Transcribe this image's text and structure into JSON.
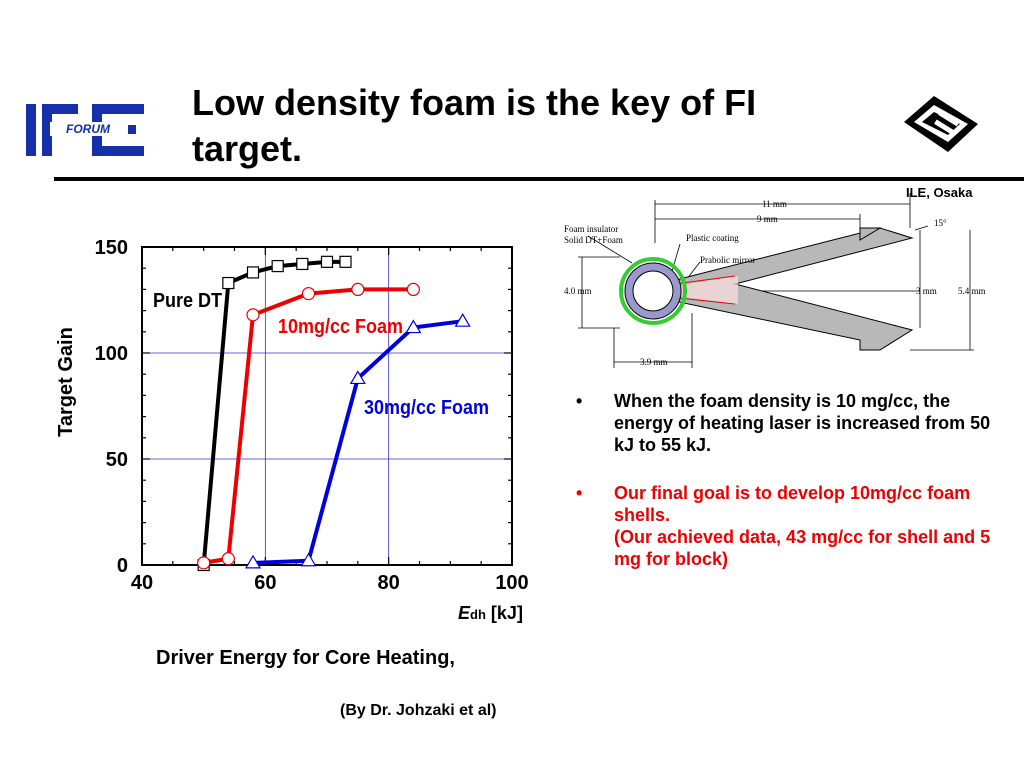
{
  "slide": {
    "title": "Low density foam is the key of FI target.",
    "logo_left": "IFE FORUM",
    "logo_left_forum": "FORUM",
    "logo_right": "ILE logo",
    "org_label": "ILE, Osaka",
    "x_symbol": "E",
    "x_subscript": "dh",
    "x_unit": "[kJ]",
    "x_description": "Driver Energy for Core Heating,",
    "credit": "(By Dr. Johzaki et al)",
    "bullets": [
      {
        "marker": "•",
        "text": "When the foam density is 10 mg/cc, the energy of heating laser is increased from 50 kJ to 55 kJ."
      },
      {
        "marker": "•",
        "line1": "Our final goal is to develop 10mg/cc foam shells.",
        "line2": "(Our achieved data, 43 mg/cc for shell and 5 mg for block)"
      }
    ]
  },
  "chart_data": {
    "type": "line",
    "ylabel": "Target Gain",
    "xlim": [
      40,
      100
    ],
    "ylim": [
      0,
      150
    ],
    "x_ticks": [
      40,
      60,
      80,
      100
    ],
    "y_ticks": [
      0,
      50,
      100,
      150
    ],
    "grid": true,
    "series": [
      {
        "name": "Pure DT",
        "color": "#000000",
        "marker": "square",
        "x": [
          50,
          54,
          58,
          62,
          66,
          70,
          73
        ],
        "y": [
          0,
          133,
          138,
          141,
          142,
          143,
          143
        ]
      },
      {
        "name": "10mg/cc Foam",
        "color": "#ee0000",
        "marker": "circle",
        "x": [
          50,
          54,
          58,
          67,
          75,
          84
        ],
        "y": [
          1,
          3,
          118,
          128,
          130,
          130
        ]
      },
      {
        "name": "30mg/cc Foam",
        "color": "#0000dd",
        "marker": "triangle",
        "x": [
          58,
          67,
          75,
          84,
          92
        ],
        "y": [
          1,
          2,
          88,
          112,
          115
        ]
      }
    ]
  },
  "diagram": {
    "labels": {
      "foam_insulator": "Foam insulator",
      "solid_dt_foam": "Solid DT+Foam",
      "plastic_coating": "Plastic coating",
      "parabolic_mirror": "Prabolic mirror",
      "dim_11mm": "11 mm",
      "dim_9mm": "9 mm",
      "angle_15": "15°",
      "dim_4mm": "4.0 mm",
      "dim_3mm": "3 mm",
      "dim_5_4mm": "5.4 mm",
      "dim_3_9mm": "3.9 mm"
    },
    "colors": {
      "cone": "#b8b8b8",
      "foam_ring": "#33cc33",
      "shell_fill": "#9999cc"
    }
  }
}
